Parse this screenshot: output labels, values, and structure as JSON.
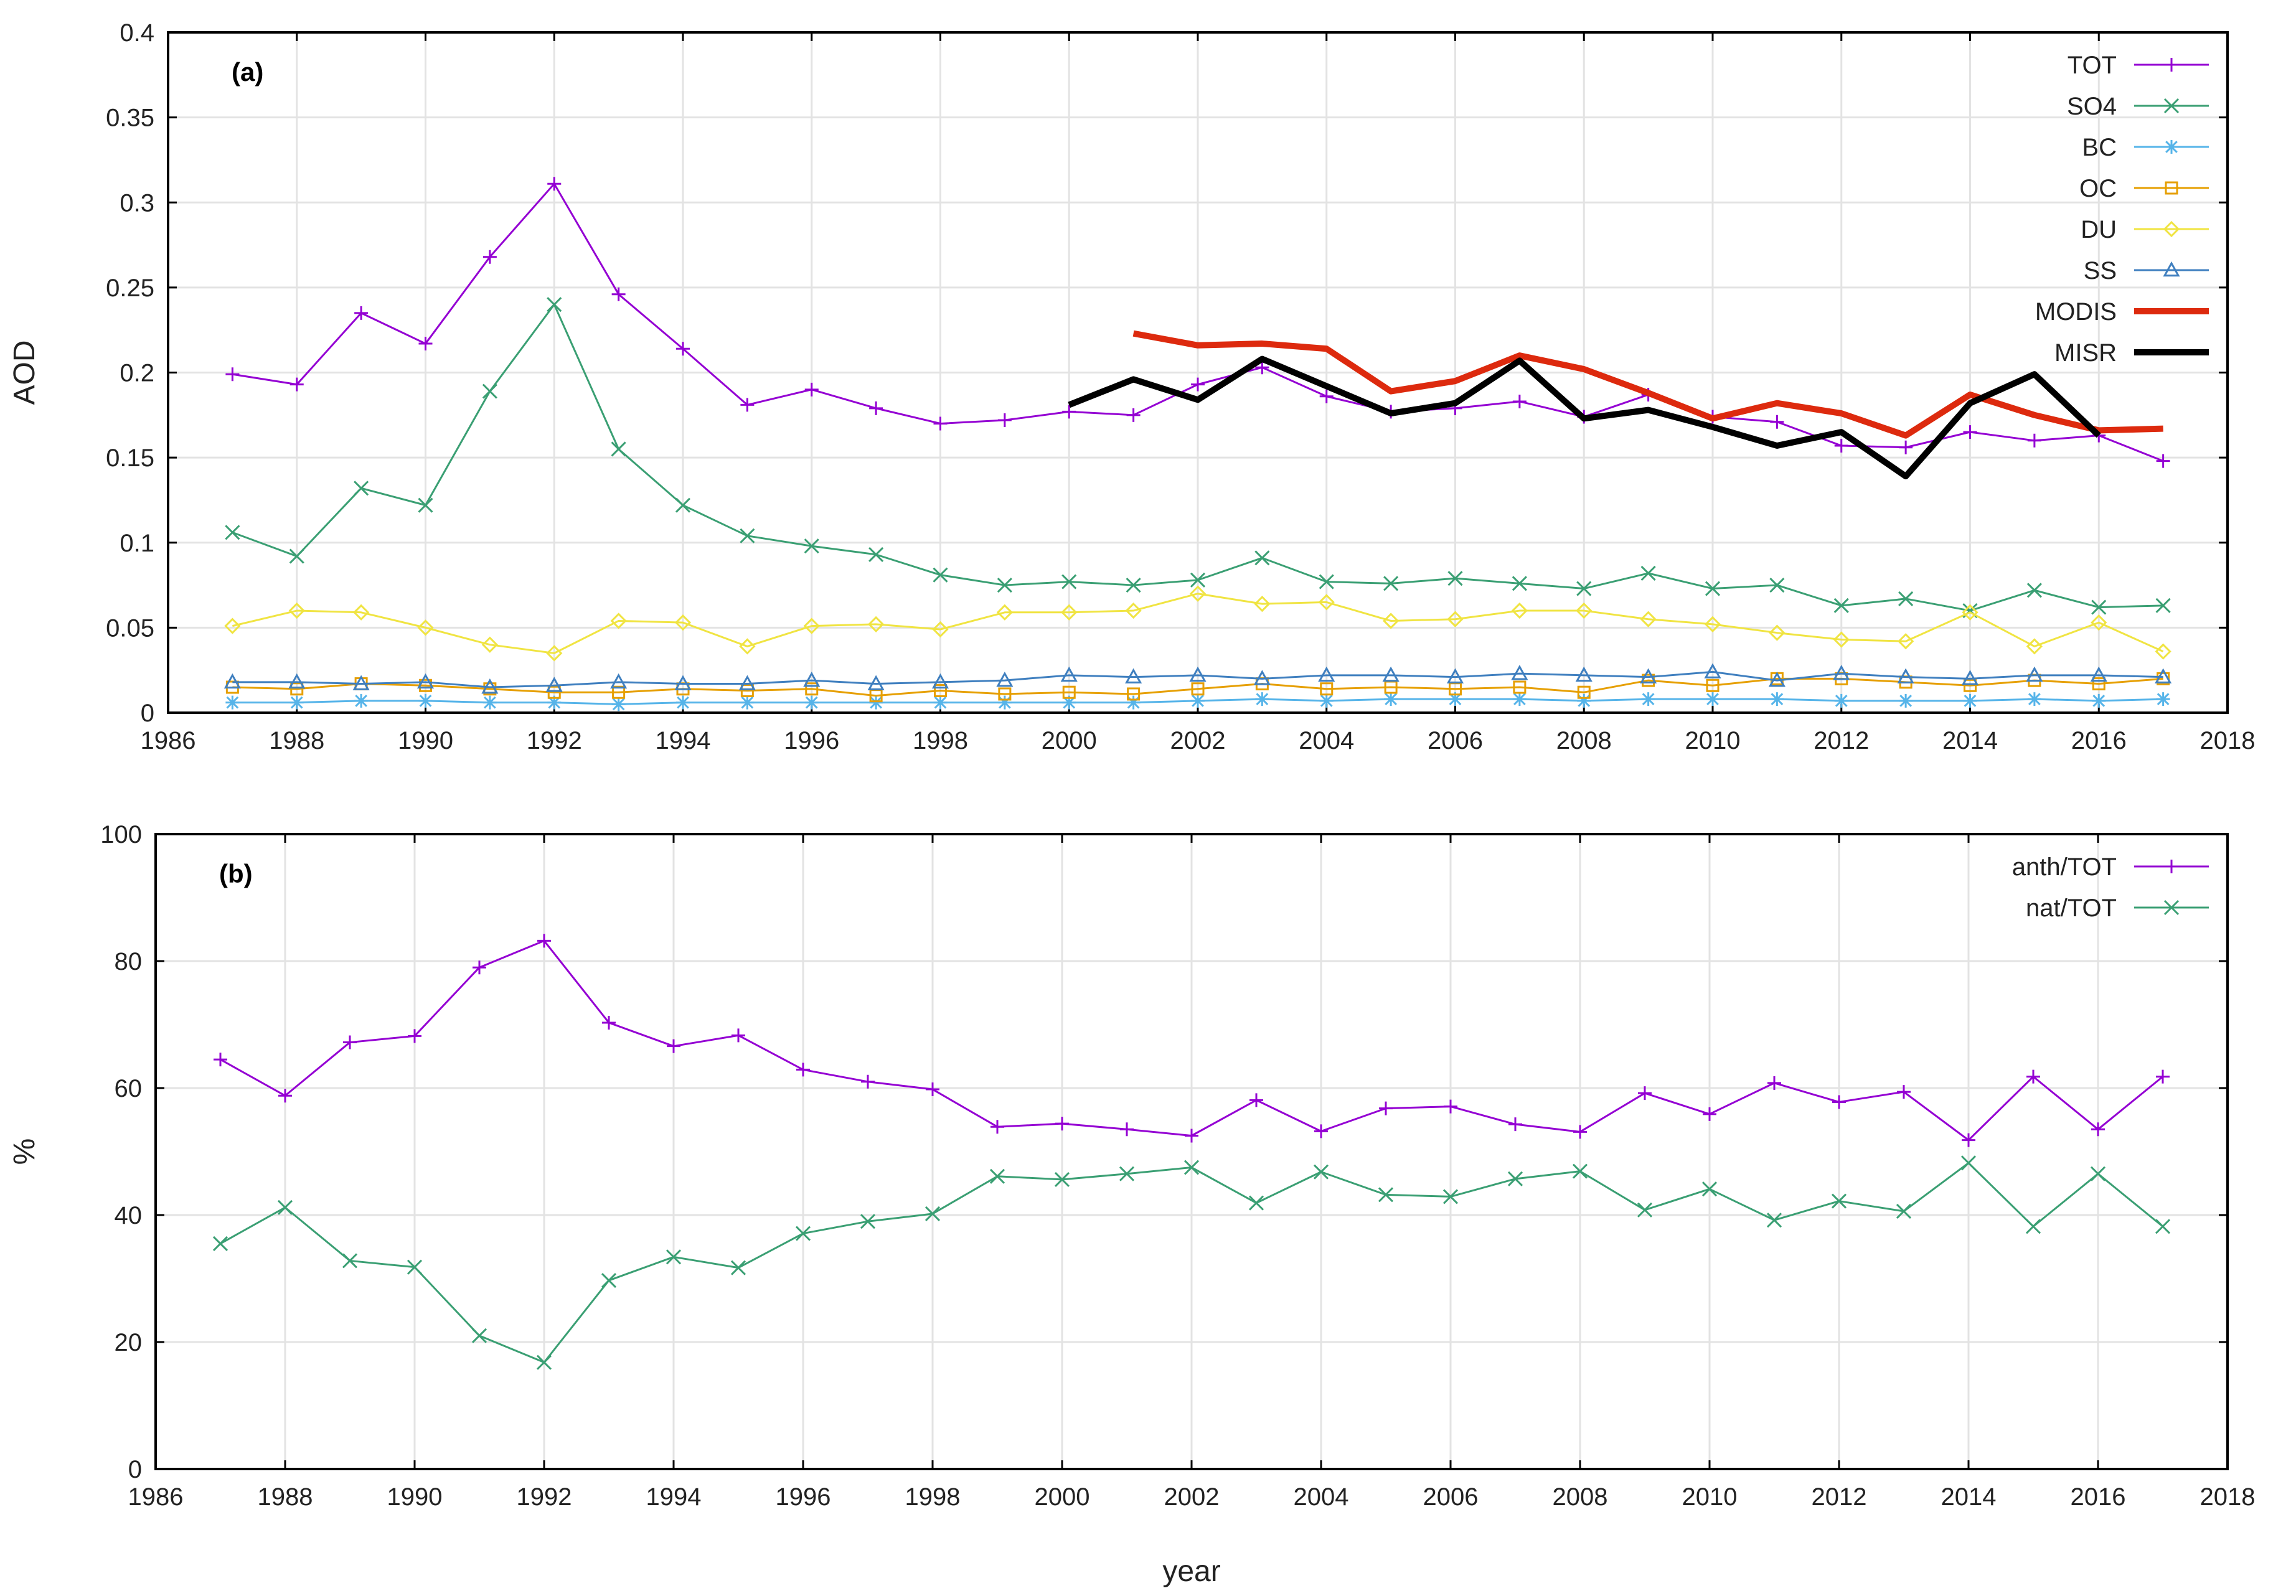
{
  "chart_data": [
    {
      "type": "line",
      "panel_label": "(a)",
      "xlabel": "",
      "ylabel": "AOD",
      "xlim": [
        1986,
        2018
      ],
      "ylim": [
        0,
        0.4
      ],
      "xticks": [
        1986,
        1988,
        1990,
        1992,
        1994,
        1996,
        1998,
        2000,
        2002,
        2004,
        2006,
        2008,
        2010,
        2012,
        2014,
        2016,
        2018
      ],
      "xtick_labels": [
        "1986",
        "1988",
        "1990",
        "1992",
        "1994",
        "1996",
        "1998",
        "2000",
        "2002",
        "2004",
        "2006",
        "2008",
        "2010",
        "2012",
        "2014",
        "2016",
        "2018"
      ],
      "yticks": [
        0,
        0.05,
        0.1,
        0.15,
        0.2,
        0.25,
        0.3,
        0.35,
        0.4
      ],
      "ytick_labels": [
        "0",
        "0.05",
        "0.1",
        "0.15",
        "0.2",
        "0.25",
        "0.3",
        "0.35",
        "0.4"
      ],
      "grid": true,
      "legend_position": "top-right",
      "series": [
        {
          "name": "TOT",
          "color": "#9400d3",
          "marker": "plus",
          "line_width": 3,
          "x": [
            1987,
            1988,
            1989,
            1990,
            1991,
            1992,
            1993,
            1994,
            1995,
            1996,
            1997,
            1998,
            1999,
            2000,
            2001,
            2002,
            2003,
            2004,
            2005,
            2006,
            2007,
            2008,
            2009,
            2010,
            2011,
            2012,
            2013,
            2014,
            2015,
            2016,
            2017
          ],
          "values": [
            0.199,
            0.193,
            0.235,
            0.217,
            0.268,
            0.311,
            0.246,
            0.214,
            0.181,
            0.19,
            0.179,
            0.17,
            0.172,
            0.177,
            0.175,
            0.193,
            0.203,
            0.186,
            0.177,
            0.179,
            0.183,
            0.174,
            0.187,
            0.174,
            0.171,
            0.157,
            0.156,
            0.165,
            0.16,
            0.163,
            0.148
          ]
        },
        {
          "name": "SO4",
          "color": "#3a9f73",
          "marker": "x",
          "line_width": 3,
          "x": [
            1987,
            1988,
            1989,
            1990,
            1991,
            1992,
            1993,
            1994,
            1995,
            1996,
            1997,
            1998,
            1999,
            2000,
            2001,
            2002,
            2003,
            2004,
            2005,
            2006,
            2007,
            2008,
            2009,
            2010,
            2011,
            2012,
            2013,
            2014,
            2015,
            2016,
            2017
          ],
          "values": [
            0.106,
            0.092,
            0.132,
            0.122,
            0.189,
            0.24,
            0.155,
            0.122,
            0.104,
            0.098,
            0.093,
            0.081,
            0.075,
            0.077,
            0.075,
            0.078,
            0.091,
            0.077,
            0.076,
            0.079,
            0.076,
            0.073,
            0.082,
            0.073,
            0.075,
            0.063,
            0.067,
            0.06,
            0.072,
            0.062,
            0.063
          ]
        },
        {
          "name": "BC",
          "color": "#56b4e9",
          "marker": "star",
          "line_width": 3,
          "x": [
            1987,
            1988,
            1989,
            1990,
            1991,
            1992,
            1993,
            1994,
            1995,
            1996,
            1997,
            1998,
            1999,
            2000,
            2001,
            2002,
            2003,
            2004,
            2005,
            2006,
            2007,
            2008,
            2009,
            2010,
            2011,
            2012,
            2013,
            2014,
            2015,
            2016,
            2017
          ],
          "values": [
            0.006,
            0.006,
            0.007,
            0.007,
            0.006,
            0.006,
            0.005,
            0.006,
            0.006,
            0.006,
            0.006,
            0.006,
            0.006,
            0.006,
            0.006,
            0.007,
            0.008,
            0.007,
            0.008,
            0.008,
            0.008,
            0.007,
            0.008,
            0.008,
            0.008,
            0.007,
            0.007,
            0.007,
            0.008,
            0.007,
            0.008
          ]
        },
        {
          "name": "OC",
          "color": "#e69f00",
          "marker": "square",
          "line_width": 3,
          "x": [
            1987,
            1988,
            1989,
            1990,
            1991,
            1992,
            1993,
            1994,
            1995,
            1996,
            1997,
            1998,
            1999,
            2000,
            2001,
            2002,
            2003,
            2004,
            2005,
            2006,
            2007,
            2008,
            2009,
            2010,
            2011,
            2012,
            2013,
            2014,
            2015,
            2016,
            2017
          ],
          "values": [
            0.015,
            0.014,
            0.017,
            0.016,
            0.014,
            0.012,
            0.012,
            0.014,
            0.013,
            0.014,
            0.01,
            0.013,
            0.011,
            0.012,
            0.011,
            0.014,
            0.017,
            0.014,
            0.015,
            0.014,
            0.015,
            0.012,
            0.019,
            0.016,
            0.02,
            0.02,
            0.018,
            0.016,
            0.019,
            0.017,
            0.02
          ]
        },
        {
          "name": "DU",
          "color": "#f0e442",
          "marker": "diamond",
          "line_width": 3,
          "x": [
            1987,
            1988,
            1989,
            1990,
            1991,
            1992,
            1993,
            1994,
            1995,
            1996,
            1997,
            1998,
            1999,
            2000,
            2001,
            2002,
            2003,
            2004,
            2005,
            2006,
            2007,
            2008,
            2009,
            2010,
            2011,
            2012,
            2013,
            2014,
            2015,
            2016,
            2017
          ],
          "values": [
            0.051,
            0.06,
            0.059,
            0.05,
            0.04,
            0.035,
            0.054,
            0.053,
            0.039,
            0.051,
            0.052,
            0.049,
            0.059,
            0.059,
            0.06,
            0.07,
            0.064,
            0.065,
            0.054,
            0.055,
            0.06,
            0.06,
            0.055,
            0.052,
            0.047,
            0.043,
            0.042,
            0.059,
            0.039,
            0.053,
            0.036
          ]
        },
        {
          "name": "SS",
          "color": "#3f7fbf",
          "marker": "triangle",
          "line_width": 3,
          "x": [
            1987,
            1988,
            1989,
            1990,
            1991,
            1992,
            1993,
            1994,
            1995,
            1996,
            1997,
            1998,
            1999,
            2000,
            2001,
            2002,
            2003,
            2004,
            2005,
            2006,
            2007,
            2008,
            2009,
            2010,
            2011,
            2012,
            2013,
            2014,
            2015,
            2016,
            2017
          ],
          "values": [
            0.018,
            0.018,
            0.017,
            0.018,
            0.015,
            0.016,
            0.018,
            0.017,
            0.017,
            0.019,
            0.017,
            0.018,
            0.019,
            0.022,
            0.021,
            0.022,
            0.02,
            0.022,
            0.022,
            0.021,
            0.023,
            0.022,
            0.021,
            0.024,
            0.019,
            0.023,
            0.021,
            0.02,
            0.022,
            0.022,
            0.021
          ]
        },
        {
          "name": "MODIS",
          "color": "#dd2a0e",
          "marker": "none",
          "line_width": 10,
          "x": [
            2001,
            2002,
            2003,
            2004,
            2005,
            2006,
            2007,
            2008,
            2009,
            2010,
            2011,
            2012,
            2013,
            2014,
            2015,
            2016,
            2017
          ],
          "values": [
            0.223,
            0.216,
            0.217,
            0.214,
            0.189,
            0.195,
            0.21,
            0.202,
            0.188,
            0.173,
            0.182,
            0.176,
            0.163,
            0.187,
            0.175,
            0.166,
            0.167
          ]
        },
        {
          "name": "MISR",
          "color": "#000000",
          "marker": "none",
          "line_width": 10,
          "x": [
            2000,
            2001,
            2002,
            2003,
            2004,
            2005,
            2006,
            2007,
            2008,
            2009,
            2010,
            2011,
            2012,
            2013,
            2014,
            2015,
            2016
          ],
          "values": [
            0.181,
            0.196,
            0.184,
            0.208,
            0.192,
            0.176,
            0.182,
            0.207,
            0.173,
            0.178,
            0.168,
            0.157,
            0.165,
            0.139,
            0.182,
            0.199,
            0.163
          ]
        }
      ]
    },
    {
      "type": "line",
      "panel_label": "(b)",
      "xlabel": "year",
      "ylabel": "%",
      "xlim": [
        1986,
        2018
      ],
      "ylim": [
        0,
        100
      ],
      "xticks": [
        1986,
        1988,
        1990,
        1992,
        1994,
        1996,
        1998,
        2000,
        2002,
        2004,
        2006,
        2008,
        2010,
        2012,
        2014,
        2016,
        2018
      ],
      "xtick_labels": [
        "1986",
        "1988",
        "1990",
        "1992",
        "1994",
        "1996",
        "1998",
        "2000",
        "2002",
        "2004",
        "2006",
        "2008",
        "2010",
        "2012",
        "2014",
        "2016",
        "2018"
      ],
      "yticks": [
        0,
        20,
        40,
        60,
        80,
        100
      ],
      "ytick_labels": [
        "0",
        "20",
        "40",
        "60",
        "80",
        "100"
      ],
      "grid": true,
      "legend_position": "top-right",
      "series": [
        {
          "name": "anth/TOT",
          "color": "#9400d3",
          "marker": "plus",
          "line_width": 3,
          "x": [
            1987,
            1988,
            1989,
            1990,
            1991,
            1992,
            1993,
            1994,
            1995,
            1996,
            1997,
            1998,
            1999,
            2000,
            2001,
            2002,
            2003,
            2004,
            2005,
            2006,
            2007,
            2008,
            2009,
            2010,
            2011,
            2012,
            2013,
            2014,
            2015,
            2016,
            2017
          ],
          "values": [
            64.5,
            58.8,
            67.2,
            68.2,
            79.0,
            83.2,
            70.3,
            66.6,
            68.3,
            62.9,
            61.0,
            59.8,
            53.9,
            54.4,
            53.5,
            52.5,
            58.1,
            53.2,
            56.8,
            57.1,
            54.3,
            53.1,
            59.2,
            55.9,
            60.8,
            57.8,
            59.4,
            51.8,
            61.8,
            53.5,
            61.8
          ]
        },
        {
          "name": "nat/TOT",
          "color": "#3a9f73",
          "marker": "x",
          "line_width": 3,
          "x": [
            1987,
            1988,
            1989,
            1990,
            1991,
            1992,
            1993,
            1994,
            1995,
            1996,
            1997,
            1998,
            1999,
            2000,
            2001,
            2002,
            2003,
            2004,
            2005,
            2006,
            2007,
            2008,
            2009,
            2010,
            2011,
            2012,
            2013,
            2014,
            2015,
            2016,
            2017
          ],
          "values": [
            35.5,
            41.2,
            32.8,
            31.8,
            21.0,
            16.8,
            29.7,
            33.4,
            31.7,
            37.1,
            39.0,
            40.2,
            46.1,
            45.6,
            46.5,
            47.5,
            41.9,
            46.8,
            43.2,
            42.9,
            45.7,
            46.9,
            40.8,
            44.1,
            39.2,
            42.2,
            40.6,
            48.2,
            38.2,
            46.5,
            38.2
          ]
        }
      ]
    }
  ]
}
